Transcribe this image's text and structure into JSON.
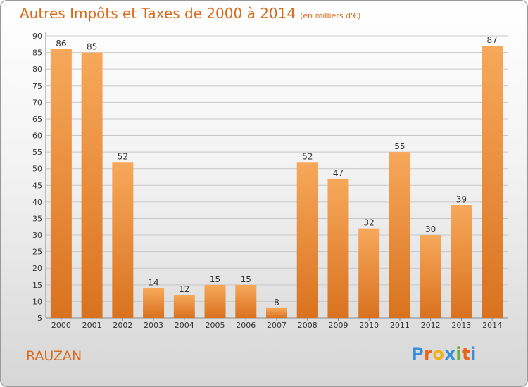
{
  "title": "Autres Impôts et Taxes de 2000 à 2014",
  "subtitle": "(en milliers d'€)",
  "place": "RAUZAN",
  "logo": {
    "text": "Proxiti",
    "letter_colors": [
      "#3a8fd6",
      "#e8641b",
      "#f2b019",
      "#3a8fd6",
      "#66b032",
      "#e8641b",
      "#3a8fd6"
    ]
  },
  "colors": {
    "bar_light": "#f7a85a",
    "bar_dark": "#d9721f",
    "text_accent": "#d96a1a",
    "grid": "#c8c8c8"
  },
  "chart_data": {
    "type": "bar",
    "title": "Autres Impôts et Taxes de 2000 à 2014",
    "subtitle": "(en milliers d'€)",
    "categories": [
      "2000",
      "2001",
      "2002",
      "2003",
      "2004",
      "2005",
      "2006",
      "2007",
      "2008",
      "2009",
      "2010",
      "2011",
      "2012",
      "2013",
      "2014"
    ],
    "values": [
      86,
      85,
      52,
      14,
      12,
      15,
      15,
      8,
      52,
      47,
      32,
      55,
      30,
      39,
      87
    ],
    "ylim": [
      5,
      90
    ],
    "yticks": [
      5,
      10,
      15,
      20,
      25,
      30,
      35,
      40,
      45,
      50,
      55,
      60,
      65,
      70,
      75,
      80,
      85,
      90
    ],
    "grid": true,
    "data_labels": true
  }
}
